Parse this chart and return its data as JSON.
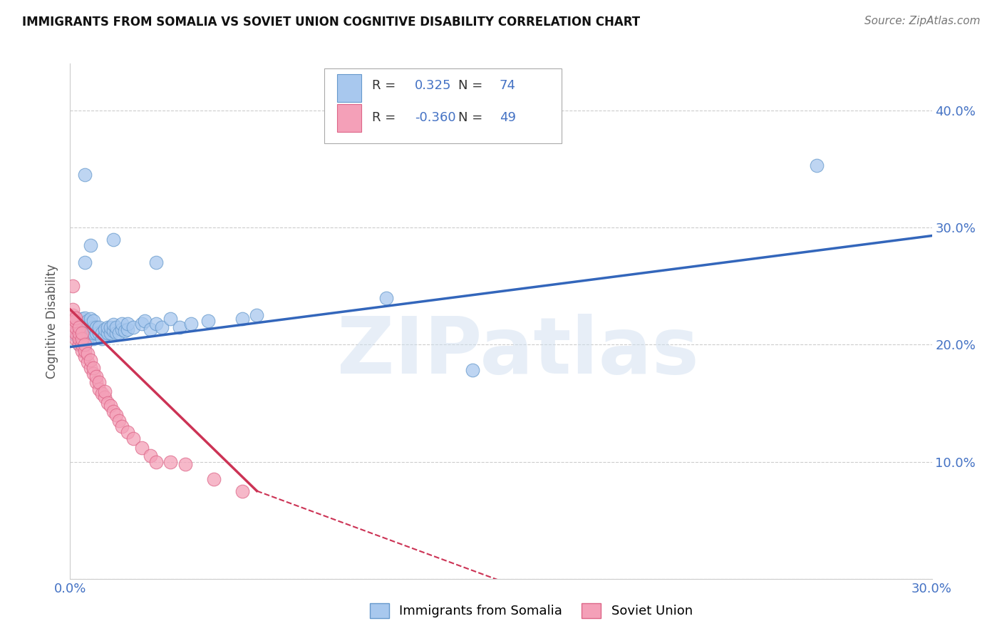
{
  "title": "IMMIGRANTS FROM SOMALIA VS SOVIET UNION COGNITIVE DISABILITY CORRELATION CHART",
  "source": "Source: ZipAtlas.com",
  "ylabel_label": "Cognitive Disability",
  "watermark": "ZIPatlas",
  "xlim": [
    0.0,
    0.3
  ],
  "ylim": [
    0.0,
    0.44
  ],
  "somalia_color": "#a8c8ee",
  "soviet_color": "#f4a0b8",
  "somalia_edge": "#6699cc",
  "soviet_edge": "#dd6688",
  "regression_somalia_color": "#3366bb",
  "regression_soviet_color": "#cc3355",
  "somalia_R": 0.325,
  "somalia_N": 74,
  "soviet_R": -0.36,
  "soviet_N": 49,
  "legend_somalia_label": "Immigrants from Somalia",
  "legend_soviet_label": "Soviet Union",
  "r_n_color": "#4472c4",
  "tick_color": "#4472c4",
  "somalia_points": [
    [
      0.001,
      0.21
    ],
    [
      0.001,
      0.215
    ],
    [
      0.002,
      0.208
    ],
    [
      0.002,
      0.212
    ],
    [
      0.002,
      0.218
    ],
    [
      0.003,
      0.2
    ],
    [
      0.003,
      0.205
    ],
    [
      0.003,
      0.21
    ],
    [
      0.003,
      0.215
    ],
    [
      0.003,
      0.22
    ],
    [
      0.004,
      0.2
    ],
    [
      0.004,
      0.205
    ],
    [
      0.004,
      0.21
    ],
    [
      0.004,
      0.215
    ],
    [
      0.004,
      0.222
    ],
    [
      0.005,
      0.2
    ],
    [
      0.005,
      0.205
    ],
    [
      0.005,
      0.21
    ],
    [
      0.005,
      0.218
    ],
    [
      0.005,
      0.223
    ],
    [
      0.006,
      0.205
    ],
    [
      0.006,
      0.21
    ],
    [
      0.006,
      0.215
    ],
    [
      0.006,
      0.22
    ],
    [
      0.007,
      0.208
    ],
    [
      0.007,
      0.213
    ],
    [
      0.007,
      0.218
    ],
    [
      0.007,
      0.222
    ],
    [
      0.008,
      0.205
    ],
    [
      0.008,
      0.21
    ],
    [
      0.008,
      0.215
    ],
    [
      0.008,
      0.22
    ],
    [
      0.009,
      0.21
    ],
    [
      0.009,
      0.215
    ],
    [
      0.01,
      0.21
    ],
    [
      0.01,
      0.215
    ],
    [
      0.011,
      0.205
    ],
    [
      0.011,
      0.21
    ],
    [
      0.012,
      0.208
    ],
    [
      0.012,
      0.213
    ],
    [
      0.013,
      0.21
    ],
    [
      0.013,
      0.215
    ],
    [
      0.014,
      0.21
    ],
    [
      0.014,
      0.215
    ],
    [
      0.015,
      0.212
    ],
    [
      0.015,
      0.217
    ],
    [
      0.016,
      0.21
    ],
    [
      0.016,
      0.215
    ],
    [
      0.017,
      0.21
    ],
    [
      0.018,
      0.213
    ],
    [
      0.018,
      0.218
    ],
    [
      0.019,
      0.212
    ],
    [
      0.02,
      0.213
    ],
    [
      0.02,
      0.218
    ],
    [
      0.022,
      0.215
    ],
    [
      0.025,
      0.218
    ],
    [
      0.026,
      0.22
    ],
    [
      0.028,
      0.213
    ],
    [
      0.03,
      0.218
    ],
    [
      0.032,
      0.215
    ],
    [
      0.035,
      0.222
    ],
    [
      0.038,
      0.215
    ],
    [
      0.042,
      0.218
    ],
    [
      0.048,
      0.22
    ],
    [
      0.06,
      0.222
    ],
    [
      0.065,
      0.225
    ],
    [
      0.005,
      0.27
    ],
    [
      0.007,
      0.285
    ],
    [
      0.015,
      0.29
    ],
    [
      0.005,
      0.345
    ],
    [
      0.11,
      0.24
    ],
    [
      0.14,
      0.178
    ],
    [
      0.26,
      0.353
    ],
    [
      0.03,
      0.27
    ]
  ],
  "soviet_points": [
    [
      0.001,
      0.215
    ],
    [
      0.001,
      0.22
    ],
    [
      0.001,
      0.225
    ],
    [
      0.001,
      0.23
    ],
    [
      0.002,
      0.205
    ],
    [
      0.002,
      0.21
    ],
    [
      0.002,
      0.215
    ],
    [
      0.002,
      0.22
    ],
    [
      0.002,
      0.223
    ],
    [
      0.003,
      0.2
    ],
    [
      0.003,
      0.205
    ],
    [
      0.003,
      0.21
    ],
    [
      0.003,
      0.215
    ],
    [
      0.004,
      0.195
    ],
    [
      0.004,
      0.2
    ],
    [
      0.004,
      0.205
    ],
    [
      0.004,
      0.21
    ],
    [
      0.005,
      0.19
    ],
    [
      0.005,
      0.195
    ],
    [
      0.005,
      0.2
    ],
    [
      0.006,
      0.185
    ],
    [
      0.006,
      0.192
    ],
    [
      0.007,
      0.18
    ],
    [
      0.007,
      0.187
    ],
    [
      0.008,
      0.175
    ],
    [
      0.008,
      0.18
    ],
    [
      0.009,
      0.168
    ],
    [
      0.009,
      0.173
    ],
    [
      0.01,
      0.162
    ],
    [
      0.01,
      0.168
    ],
    [
      0.011,
      0.158
    ],
    [
      0.012,
      0.155
    ],
    [
      0.012,
      0.16
    ],
    [
      0.013,
      0.15
    ],
    [
      0.014,
      0.148
    ],
    [
      0.015,
      0.143
    ],
    [
      0.016,
      0.14
    ],
    [
      0.017,
      0.135
    ],
    [
      0.018,
      0.13
    ],
    [
      0.02,
      0.125
    ],
    [
      0.022,
      0.12
    ],
    [
      0.025,
      0.112
    ],
    [
      0.028,
      0.105
    ],
    [
      0.03,
      0.1
    ],
    [
      0.035,
      0.1
    ],
    [
      0.04,
      0.098
    ],
    [
      0.05,
      0.085
    ],
    [
      0.001,
      0.25
    ],
    [
      0.06,
      0.075
    ]
  ],
  "regression_somalia": [
    0.0,
    0.3,
    0.198,
    0.293
  ],
  "regression_soviet_solid": [
    0.0,
    0.065,
    0.23,
    0.075
  ],
  "regression_soviet_dash": [
    0.065,
    0.17,
    0.075,
    -0.02
  ]
}
